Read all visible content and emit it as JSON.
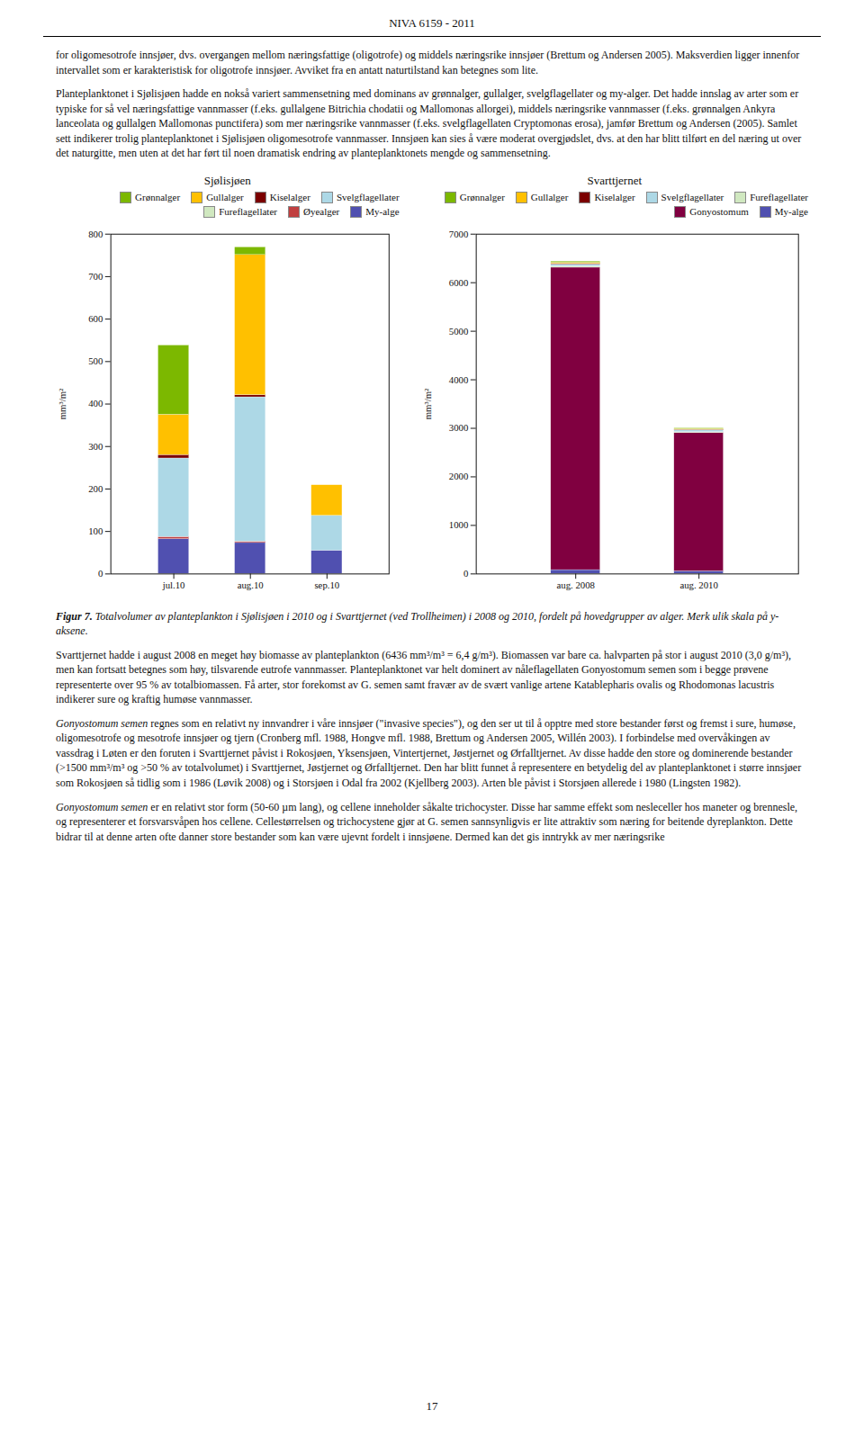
{
  "header": "NIVA 6159 - 2011",
  "page_number": "17",
  "paragraphs_before": [
    [
      {
        "text": "for oligomesotrofe innsjøer, dvs. overgangen mellom næringsfattige (oligotrofe) og middels næringsrike innsjøer (Brettum og Andersen 2005). Maksverdien ligger innenfor intervallet som er karakteristisk for oligotrofe innsjøer. Avviket fra en antatt naturtilstand kan betegnes som lite."
      }
    ],
    [
      {
        "text": "Planteplanktonet i Sjølisjøen hadde en nokså variert sammensetning med dominans av grønnalger, gullalger, svelgflagellater og my-alger. Det hadde innslag av arter som er typiske for så vel næringsfattige vannmasser (f.eks. gullalgene Bitrichia chodatii og Mallomonas allorgei), middels næringsrike vannmasser (f.eks. grønnalgen Ankyra lanceolata og gullalgen Mallomonas punctifera) som mer næringsrike vannmasser (f.eks. svelgflagellaten Cryptomonas erosa), jamfør Brettum og Andersen (2005). Samlet sett indikerer trolig planteplanktonet i Sjølisjøen oligomesotrofe vannmasser. Innsjøen kan sies å være moderat overgjødslet, dvs. at den har blitt tilført en del næring ut over det naturgitte, men uten at det har ført til noen dramatisk endring av planteplanktonets mengde og sammensetning."
      }
    ]
  ],
  "caption": [
    {
      "text": "Figur 7.",
      "bold": true,
      "italic": true
    },
    {
      "text": " Totalvolumer av planteplankton i Sjølisjøen i 2010 og i Svarttjernet (ved Trollheimen) i 2008 og 2010, fordelt på hovedgrupper av alger. Merk ulik skala på y-aksene.",
      "italic": true
    }
  ],
  "paragraphs_after": [
    [
      {
        "text": "Svarttjernet hadde i august 2008 en meget høy biomasse av planteplankton (6436 mm³/m³ = 6,4 g/m³). Biomassen var bare ca. halvparten på stor i august 2010 (3,0 g/m³), men kan fortsatt betegnes som høy, tilsvarende eutrofe vannmasser. Planteplanktonet var helt dominert av nåleflagellaten Gonyostomum semen som i begge prøvene representerte over 95 % av totalbiomassen. Få arter, stor forekomst av G. semen samt fravær av de svært vanlige artene Katablepharis ovalis og Rhodomonas lacustris indikerer sure og kraftig humøse vannmasser."
      }
    ],
    [
      {
        "text": "Gonyostomum semen",
        "italic": true
      },
      {
        "text": " regnes som en relativt ny innvandrer i våre innsjøer (\"invasive species\"), og den ser ut til å opptre med store bestander først og fremst i sure, humøse, oligomesotrofe og mesotrofe innsjøer og tjern (Cronberg mfl. 1988, Hongve mfl. 1988, Brettum og Andersen 2005, Willén 2003). I forbindelse med overvåkingen av vassdrag i Løten er den foruten i Svarttjernet påvist i Rokosjøen, Yksensjøen, Vintertjernet, Jøstjernet og Ørfalltjernet. Av disse hadde den store og dominerende bestander (>1500 mm³/m³ og >50 % av totalvolumet) i Svarttjernet, Jøstjernet og Ørfalltjernet. Den har blitt funnet å representere en betydelig del av planteplanktonet i større innsjøer som Rokosjøen så tidlig som i 1986 (Løvik 2008) og i Storsjøen i Odal fra 2002 (Kjellberg 2003). Arten ble påvist i Storsjøen allerede i 1980 (Lingsten 1982)."
      }
    ],
    [
      {
        "text": "Gonyostomum semen",
        "italic": true
      },
      {
        "text": " er en relativt stor form (50-60 µm lang), og cellene inneholder såkalte trichocyster. Disse har samme effekt som nesleceller hos maneter og brennesle, og representerer et forsvarsvåpen hos cellene. Cellestørrelsen og trichocystene gjør at G. semen sannsynligvis er lite attraktiv som næring for beitende dyreplankton. Dette bidrar til at denne arten ofte danner store bestander som kan være ujevnt fordelt i innsjøene. Dermed kan det gis inntrykk av mer næringsrike"
      }
    ]
  ],
  "chart_data": [
    {
      "type": "bar",
      "stacked": true,
      "legend": "upper right",
      "title": "Sjølisjøen",
      "ylabel": "mm³/m²",
      "categories": [
        "jul.10",
        "aug.10",
        "sep.10"
      ],
      "ylim": [
        0,
        800
      ],
      "yticks": [
        0,
        100,
        200,
        300,
        400,
        500,
        600,
        700,
        800
      ],
      "series": [
        {
          "name": "My-alge",
          "color": "#5050b0",
          "values": [
            82,
            73,
            55
          ]
        },
        {
          "name": "Øyealger",
          "color": "#c04040",
          "values": [
            5,
            3,
            0
          ]
        },
        {
          "name": "Fureflagellater",
          "color": "#d0e8c0",
          "values": [
            0,
            0,
            0
          ]
        },
        {
          "name": "Svelgflagellater",
          "color": "#add8e6",
          "values": [
            185,
            340,
            82
          ]
        },
        {
          "name": "Kiselalger",
          "color": "#7b0000",
          "values": [
            8,
            5,
            0
          ]
        },
        {
          "name": "Gullalger",
          "color": "#ffc000",
          "values": [
            95,
            330,
            72
          ]
        },
        {
          "name": "Grønnalger",
          "color": "#7cb800",
          "values": [
            163,
            18,
            0
          ]
        }
      ]
    },
    {
      "type": "bar",
      "stacked": true,
      "legend": "upper right",
      "title": "Svarttjernet",
      "ylabel": "mm³/m²",
      "categories": [
        "aug. 2008",
        "aug. 2010"
      ],
      "ylim": [
        0,
        7000
      ],
      "yticks": [
        0,
        1000,
        2000,
        3000,
        4000,
        5000,
        6000,
        7000
      ],
      "series": [
        {
          "name": "My-alge",
          "color": "#5050b0",
          "values": [
            80,
            55
          ]
        },
        {
          "name": "Gonyostomum",
          "color": "#800040",
          "values": [
            6230,
            2850
          ]
        },
        {
          "name": "Fureflagellater",
          "color": "#d0e8c0",
          "values": [
            25,
            15
          ]
        },
        {
          "name": "Svelgflagellater",
          "color": "#add8e6",
          "values": [
            40,
            40
          ]
        },
        {
          "name": "Kiselalger",
          "color": "#7b0000",
          "values": [
            15,
            10
          ]
        },
        {
          "name": "Gullalger",
          "color": "#ffc000",
          "values": [
            20,
            15
          ]
        },
        {
          "name": "Grønnalger",
          "color": "#7cb800",
          "values": [
            25,
            15
          ]
        }
      ]
    }
  ]
}
